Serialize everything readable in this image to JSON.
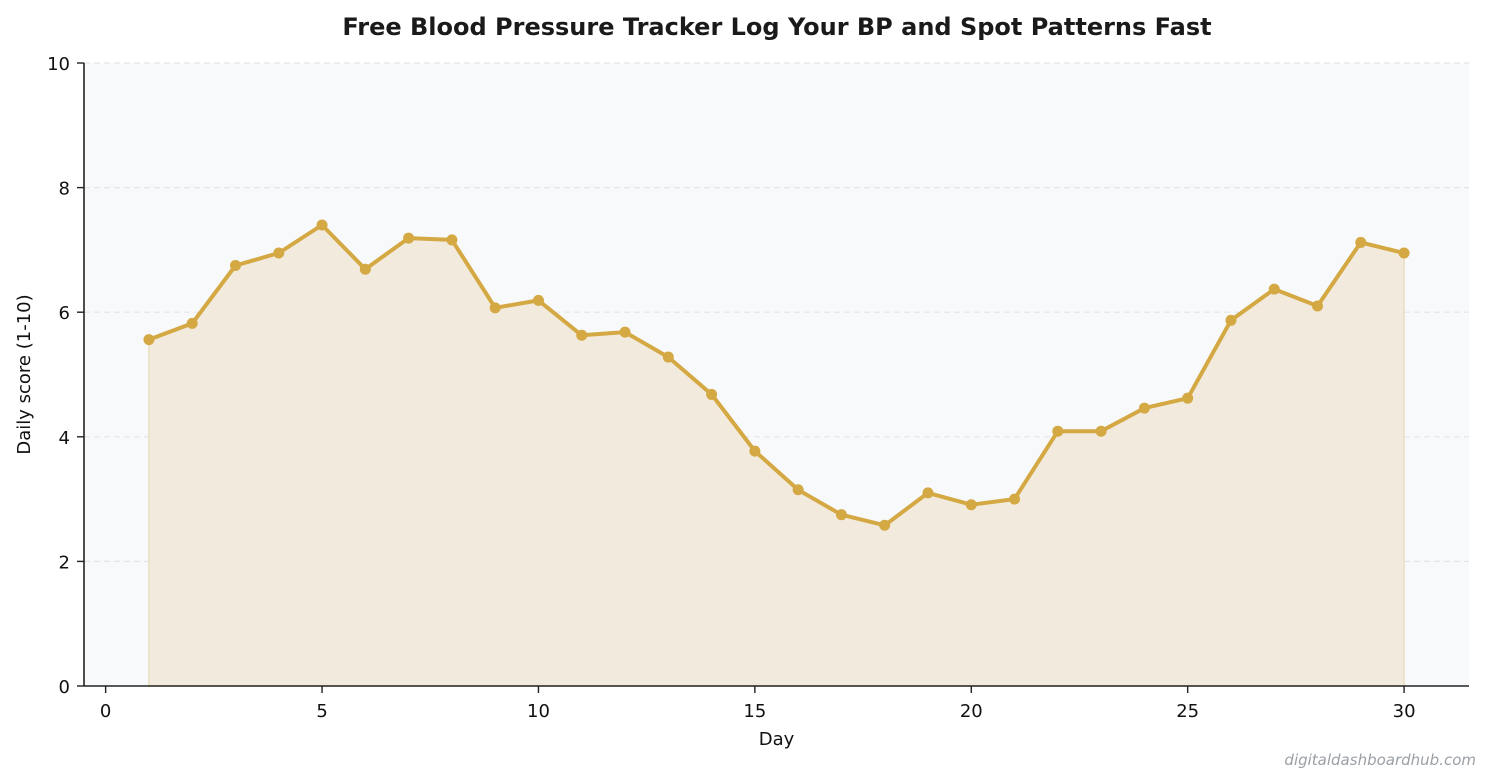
{
  "chart_data": {
    "type": "area",
    "title": "Free Blood Pressure Tracker  Log Your BP and Spot Patterns Fast",
    "xlabel": "Day",
    "ylabel": "Daily score (1-10)",
    "xlim": [
      -0.5,
      31.5
    ],
    "ylim": [
      0,
      10
    ],
    "xticks": [
      0,
      5,
      10,
      15,
      20,
      25,
      30
    ],
    "yticks": [
      0,
      2,
      4,
      6,
      8,
      10
    ],
    "grid": "horizontal dashed",
    "legend": "none",
    "colors": {
      "line": "#d4a843",
      "fill": "#f2ebdd",
      "plot_background": "#f8f9fb",
      "grid": "#e3e5e8",
      "axis": "#222222"
    },
    "series": [
      {
        "x": [
          1,
          2,
          3,
          4,
          5,
          6,
          7,
          8,
          9,
          10,
          11,
          12,
          13,
          14,
          15,
          16,
          17,
          18,
          19,
          20,
          21,
          22,
          23,
          24,
          25,
          26,
          27,
          28,
          29,
          30
        ],
        "values": [
          5.56,
          5.82,
          6.75,
          6.95,
          7.4,
          6.69,
          7.19,
          7.16,
          6.07,
          6.19,
          5.63,
          5.68,
          5.28,
          4.68,
          3.77,
          3.15,
          2.75,
          2.58,
          3.1,
          2.91,
          3.0,
          4.09,
          4.09,
          4.46,
          4.62,
          5.87,
          6.37,
          6.1,
          7.12,
          6.95
        ]
      }
    ]
  },
  "watermark": "digitaldashboardhub.com"
}
